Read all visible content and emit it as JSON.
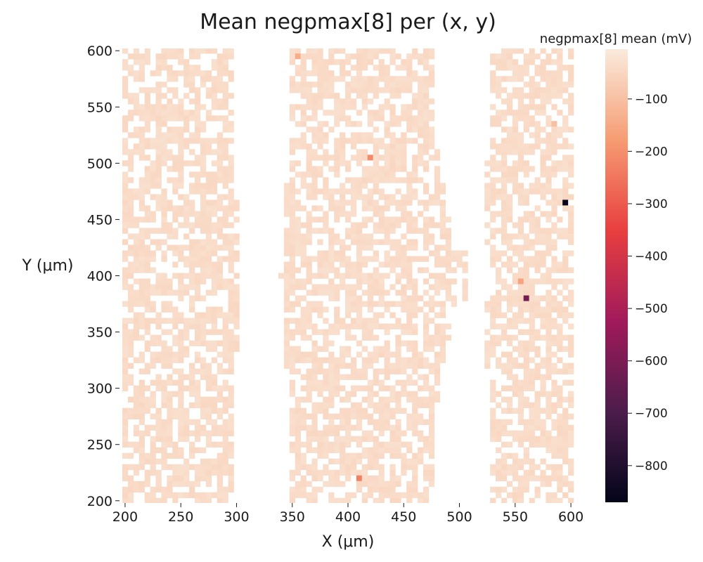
{
  "chart_data": {
    "type": "heatmap",
    "title": "Mean negpmax[8] per (x, y)",
    "xlabel": "X (μm)",
    "ylabel": "Y (μm)",
    "xlim": [
      195,
      605
    ],
    "ylim": [
      198,
      602
    ],
    "xticks": [
      200,
      250,
      300,
      350,
      400,
      450,
      500,
      550,
      600
    ],
    "yticks": [
      200,
      250,
      300,
      350,
      400,
      450,
      500,
      550,
      600
    ],
    "grid": false,
    "colorbar": {
      "label": "negpmax[8] mean (mV)",
      "range": [
        -870,
        -5
      ],
      "ticks": [
        -100,
        -200,
        -300,
        -400,
        -500,
        -600,
        -700,
        -800
      ],
      "tick_labels": [
        "−100",
        "−200",
        "−300",
        "−400",
        "−500",
        "−600",
        "−700",
        "−800"
      ],
      "colormap": "rocket",
      "stops": [
        "#03051a",
        "#4c1d4b",
        "#a11a5b",
        "#e83f3f",
        "#f69c73",
        "#faebdd"
      ]
    },
    "background_value": -30,
    "outliers": [
      {
        "x": 355,
        "y": 595,
        "value": -140
      },
      {
        "x": 420,
        "y": 505,
        "value": -210
      },
      {
        "x": 585,
        "y": 535,
        "value": -100
      },
      {
        "x": 595,
        "y": 465,
        "value": -860
      },
      {
        "x": 555,
        "y": 395,
        "value": -160
      },
      {
        "x": 560,
        "y": 380,
        "value": -620
      },
      {
        "x": 410,
        "y": 220,
        "value": -230
      }
    ]
  }
}
